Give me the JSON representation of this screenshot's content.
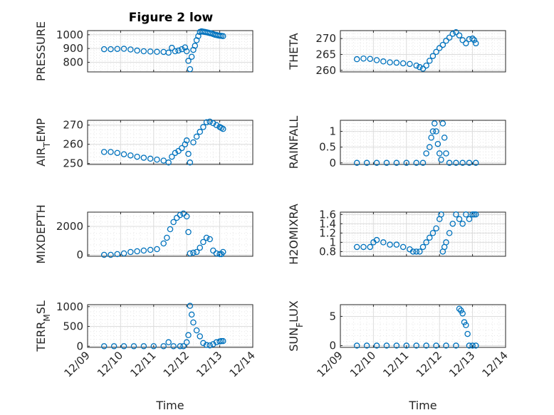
{
  "figure": {
    "title": "Figure 2 low"
  },
  "colors": {
    "marker": "#0072bd",
    "axis": "#262626",
    "grid": "#dcdcdc"
  },
  "chart_data": [
    {
      "type": "scatter",
      "panel": "PRESSURE",
      "ylabel": "PRESSURE",
      "xlabel": "",
      "xlim": [
        0,
        5
      ],
      "ylim": [
        730,
        1030
      ],
      "yticks": [
        800,
        900,
        1000
      ],
      "xtick_labels": [
        "12/09",
        "12/10",
        "12/11",
        "12/12",
        "12/13",
        "12/14"
      ],
      "grid": true,
      "marker": "open-circle",
      "x": [
        0.5,
        0.7,
        0.9,
        1.1,
        1.3,
        1.5,
        1.7,
        1.9,
        2.1,
        2.3,
        2.45,
        2.55,
        2.65,
        2.75,
        2.85,
        2.95,
        3.0,
        3.05,
        3.1,
        3.15,
        3.2,
        3.25,
        3.3,
        3.35,
        3.4,
        3.45,
        3.5,
        3.55,
        3.6,
        3.65,
        3.7,
        3.75,
        3.8,
        3.85,
        3.9,
        3.95,
        4.0,
        4.05,
        4.1
      ],
      "y": [
        895,
        895,
        897,
        898,
        893,
        885,
        880,
        878,
        876,
        875,
        870,
        905,
        880,
        885,
        895,
        908,
        880,
        810,
        750,
        840,
        890,
        920,
        960,
        990,
        1020,
        1025,
        1022,
        1020,
        1018,
        1015,
        1012,
        1010,
        1005,
        1000,
        998,
        995,
        993,
        992,
        990
      ]
    },
    {
      "type": "scatter",
      "panel": "THETA",
      "ylabel": "THETA",
      "xlabel": "",
      "xlim": [
        0,
        5
      ],
      "ylim": [
        259.5,
        272.5
      ],
      "yticks": [
        260,
        265,
        270
      ],
      "xtick_labels": [
        "12/09",
        "12/10",
        "12/11",
        "12/12",
        "12/13",
        "12/14"
      ],
      "grid": true,
      "marker": "open-circle",
      "x": [
        0.5,
        0.7,
        0.9,
        1.1,
        1.3,
        1.5,
        1.7,
        1.9,
        2.1,
        2.3,
        2.4,
        2.5,
        2.6,
        2.7,
        2.8,
        2.9,
        3.0,
        3.1,
        3.2,
        3.3,
        3.4,
        3.5,
        3.6,
        3.7,
        3.8,
        3.9,
        4.0,
        4.05,
        4.1
      ],
      "y": [
        263.5,
        263.7,
        263.6,
        263.2,
        262.8,
        262.5,
        262.4,
        262.2,
        262.0,
        261.5,
        261.0,
        260.5,
        261.5,
        263.0,
        264.5,
        265.8,
        267.0,
        268.0,
        269.3,
        270.3,
        271.5,
        272.0,
        271.0,
        269.5,
        268.5,
        269.8,
        270.0,
        269.5,
        268.5
      ]
    },
    {
      "type": "scatter",
      "panel": "AIR_TEMP",
      "ylabel": "AIR_TEMP",
      "xlabel": "",
      "xlim": [
        0,
        5
      ],
      "ylim": [
        249.5,
        272.5
      ],
      "yticks": [
        250,
        260,
        270
      ],
      "xtick_labels": [
        "12/09",
        "12/10",
        "12/11",
        "12/12",
        "12/13",
        "12/14"
      ],
      "grid": true,
      "marker": "open-circle",
      "x": [
        0.5,
        0.7,
        0.9,
        1.1,
        1.3,
        1.5,
        1.7,
        1.9,
        2.1,
        2.3,
        2.45,
        2.55,
        2.65,
        2.75,
        2.85,
        2.95,
        3.0,
        3.05,
        3.1,
        3.2,
        3.3,
        3.4,
        3.5,
        3.6,
        3.7,
        3.8,
        3.9,
        4.0,
        4.05,
        4.1
      ],
      "y": [
        256.0,
        256.0,
        255.5,
        254.8,
        254.2,
        253.5,
        253.0,
        252.5,
        252.0,
        251.5,
        250.5,
        253.5,
        255.5,
        256.5,
        258.0,
        260.0,
        262.0,
        255.0,
        250.5,
        261.0,
        264.0,
        266.5,
        269.0,
        271.5,
        271.8,
        271.0,
        270.0,
        269.0,
        268.5,
        268.0
      ]
    },
    {
      "type": "scatter",
      "panel": "RAINFALL",
      "ylabel": "RAINFALL",
      "xlabel": "",
      "xlim": [
        0,
        5
      ],
      "ylim": [
        -0.05,
        1.35
      ],
      "yticks": [
        0,
        0.5,
        1
      ],
      "xtick_labels": [
        "12/09",
        "12/10",
        "12/11",
        "12/12",
        "12/13",
        "12/14"
      ],
      "grid": true,
      "marker": "open-circle",
      "x": [
        0.5,
        0.8,
        1.1,
        1.4,
        1.7,
        2.0,
        2.3,
        2.5,
        2.6,
        2.7,
        2.75,
        2.8,
        2.85,
        2.9,
        2.95,
        3.0,
        3.05,
        3.1,
        3.15,
        3.2,
        3.3,
        3.5,
        3.7,
        3.9,
        4.1
      ],
      "y": [
        0,
        0,
        0,
        0,
        0,
        0,
        0,
        0,
        0.3,
        0.5,
        0.8,
        1.0,
        1.25,
        1.0,
        0.6,
        0.3,
        0.1,
        1.25,
        0.8,
        0.3,
        0,
        0,
        0,
        0,
        0
      ]
    },
    {
      "type": "scatter",
      "panel": "MIXDEPTH",
      "ylabel": "MIXDEPTH",
      "xlabel": "",
      "xlim": [
        0,
        5
      ],
      "ylim": [
        -100,
        3000
      ],
      "yticks": [
        0,
        2000
      ],
      "xtick_labels": [
        "12/09",
        "12/10",
        "12/11",
        "12/12",
        "12/13",
        "12/14"
      ],
      "grid": true,
      "marker": "open-circle",
      "x": [
        0.5,
        0.7,
        0.9,
        1.1,
        1.3,
        1.5,
        1.7,
        1.9,
        2.1,
        2.3,
        2.4,
        2.5,
        2.6,
        2.7,
        2.8,
        2.9,
        3.0,
        3.05,
        3.1,
        3.2,
        3.3,
        3.4,
        3.5,
        3.6,
        3.7,
        3.8,
        3.9,
        4.0,
        4.05,
        4.1
      ],
      "y": [
        0,
        0,
        50,
        100,
        200,
        250,
        300,
        350,
        400,
        800,
        1200,
        1800,
        2300,
        2600,
        2800,
        2900,
        2700,
        1600,
        100,
        150,
        200,
        500,
        900,
        1200,
        1100,
        300,
        100,
        50,
        50,
        200
      ]
    },
    {
      "type": "scatter",
      "panel": "H2OMIXRA",
      "ylabel": "H2OMIXRA",
      "xlabel": "",
      "xlim": [
        0,
        5
      ],
      "ylim": [
        0.7,
        1.65
      ],
      "yticks": [
        0.8,
        1,
        1.2,
        1.4,
        1.6
      ],
      "xtick_labels": [
        "12/09",
        "12/10",
        "12/11",
        "12/12",
        "12/13",
        "12/14"
      ],
      "grid": true,
      "marker": "open-circle",
      "x": [
        0.5,
        0.7,
        0.9,
        1.0,
        1.1,
        1.3,
        1.5,
        1.7,
        1.9,
        2.1,
        2.2,
        2.3,
        2.4,
        2.5,
        2.6,
        2.7,
        2.8,
        2.9,
        3.0,
        3.05,
        3.1,
        3.15,
        3.2,
        3.3,
        3.4,
        3.5,
        3.6,
        3.7,
        3.8,
        3.9,
        4.0,
        4.05,
        4.1
      ],
      "y": [
        0.9,
        0.9,
        0.9,
        1.0,
        1.05,
        1.0,
        0.95,
        0.95,
        0.9,
        0.85,
        0.8,
        0.8,
        0.8,
        0.9,
        1.0,
        1.1,
        1.2,
        1.3,
        1.5,
        1.6,
        0.8,
        0.9,
        1.0,
        1.2,
        1.4,
        1.6,
        1.5,
        1.4,
        1.6,
        1.5,
        1.6,
        1.6,
        1.6
      ]
    },
    {
      "type": "scatter",
      "panel": "TERR_MSL",
      "ylabel": "TERR_MSL",
      "xlabel": "Time",
      "xlim": [
        0,
        5
      ],
      "ylim": [
        -30,
        1050
      ],
      "yticks": [
        0,
        500,
        1000
      ],
      "xtick_labels": [
        "12/09",
        "12/10",
        "12/11",
        "12/12",
        "12/13",
        "12/14"
      ],
      "grid": true,
      "marker": "open-circle",
      "x": [
        0.5,
        0.8,
        1.1,
        1.4,
        1.7,
        2.0,
        2.3,
        2.45,
        2.6,
        2.8,
        2.9,
        3.0,
        3.05,
        3.1,
        3.15,
        3.2,
        3.3,
        3.4,
        3.5,
        3.6,
        3.7,
        3.8,
        3.9,
        4.0,
        4.05,
        4.1
      ],
      "y": [
        0,
        0,
        0,
        0,
        0,
        0,
        0,
        100,
        0,
        0,
        0,
        100,
        280,
        1020,
        800,
        600,
        400,
        250,
        80,
        30,
        20,
        50,
        100,
        120,
        130,
        130
      ]
    },
    {
      "type": "scatter",
      "panel": "SUN_FLUX",
      "ylabel": "SUN_FLUX",
      "xlabel": "Time",
      "xlim": [
        0,
        5
      ],
      "ylim": [
        -0.3,
        7
      ],
      "yticks": [
        0,
        5
      ],
      "xtick_labels": [
        "12/09",
        "12/10",
        "12/11",
        "12/12",
        "12/13",
        "12/14"
      ],
      "grid": true,
      "marker": "open-circle",
      "x": [
        0.5,
        0.8,
        1.1,
        1.4,
        1.7,
        2.0,
        2.3,
        2.6,
        2.9,
        3.2,
        3.5,
        3.6,
        3.65,
        3.7,
        3.75,
        3.8,
        3.85,
        3.9,
        4.0,
        4.1
      ],
      "y": [
        0,
        0,
        0,
        0,
        0,
        0,
        0,
        0,
        0,
        0,
        0,
        6.3,
        6.0,
        5.5,
        4.0,
        3.5,
        2.0,
        0,
        0,
        0
      ]
    }
  ]
}
